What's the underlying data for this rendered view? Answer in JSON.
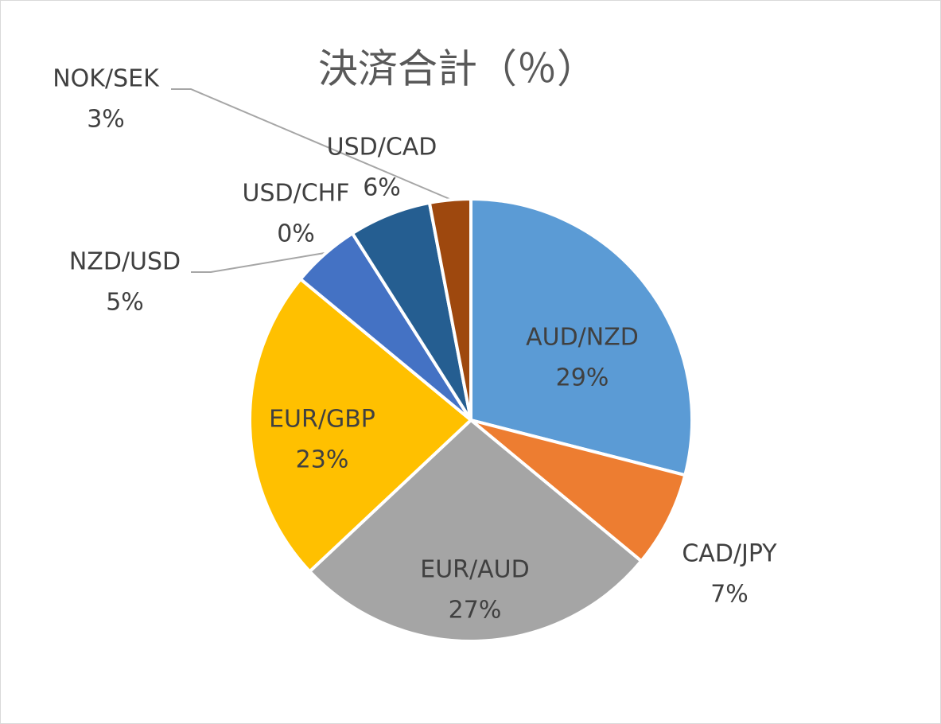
{
  "chart_data": {
    "type": "pie",
    "title": "決済合計（％）",
    "categories": [
      "AUD/NZD",
      "CAD/JPY",
      "EUR/AUD",
      "EUR/GBP",
      "NZD/USD",
      "USD/CHF",
      "USD/CAD",
      "NOK/SEK"
    ],
    "values": [
      29,
      7,
      27,
      23,
      5,
      0,
      6,
      3
    ],
    "value_labels": [
      "29%",
      "7%",
      "27%",
      "23%",
      "5%",
      "0%",
      "6%",
      "3%"
    ],
    "colors": [
      "#5b9bd5",
      "#ed7d31",
      "#a5a5a5",
      "#ffc000",
      "#4472c4",
      "#70ad47",
      "#255e91",
      "#9e480e"
    ]
  }
}
